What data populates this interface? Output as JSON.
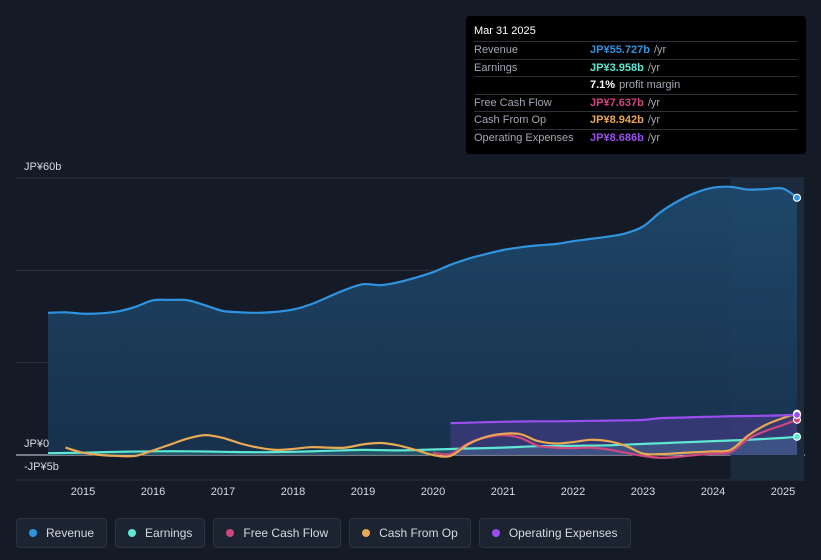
{
  "chart_data": {
    "type": "line",
    "y_top_label": "JP¥60b",
    "y_zero_label": "JP¥0",
    "y_bottom_label": "-JP¥5b",
    "ylim": [
      -5,
      60
    ],
    "xlim": [
      2014.5,
      2025.3
    ],
    "x_ticks": [
      "2015",
      "2016",
      "2017",
      "2018",
      "2019",
      "2020",
      "2021",
      "2022",
      "2023",
      "2024",
      "2025"
    ],
    "highlight_start": 2024.25,
    "series": [
      {
        "name": "Revenue",
        "color": "#2f94e0",
        "fill": true,
        "x": [
          2014.5,
          2014.75,
          2015.0,
          2015.25,
          2015.5,
          2015.75,
          2016.0,
          2016.25,
          2016.5,
          2016.75,
          2017.0,
          2017.25,
          2017.5,
          2017.75,
          2018.0,
          2018.25,
          2018.5,
          2018.75,
          2019.0,
          2019.25,
          2019.5,
          2019.75,
          2020.0,
          2020.25,
          2020.5,
          2020.75,
          2021.0,
          2021.25,
          2021.5,
          2021.75,
          2022.0,
          2022.25,
          2022.5,
          2022.75,
          2023.0,
          2023.25,
          2023.5,
          2023.75,
          2024.0,
          2024.25,
          2024.5,
          2024.75,
          2025.0,
          2025.2
        ],
        "values": [
          30.8,
          30.9,
          30.6,
          30.7,
          31.1,
          32.1,
          33.5,
          33.6,
          33.5,
          32.4,
          31.2,
          30.9,
          30.8,
          31.0,
          31.5,
          32.6,
          34.2,
          35.8,
          37.0,
          36.8,
          37.4,
          38.4,
          39.6,
          41.2,
          42.5,
          43.5,
          44.4,
          45.0,
          45.4,
          45.7,
          46.3,
          46.8,
          47.3,
          48.0,
          49.5,
          52.6,
          55.0,
          56.8,
          57.9,
          58.1,
          57.5,
          57.6,
          57.7,
          55.727
        ]
      },
      {
        "name": "Earnings",
        "color": "#5ee8d4",
        "fill": true,
        "x": [
          2014.5,
          2015.0,
          2015.5,
          2016.0,
          2016.5,
          2017.0,
          2017.5,
          2018.0,
          2018.5,
          2019.0,
          2019.5,
          2020.0,
          2020.5,
          2021.0,
          2021.5,
          2022.0,
          2022.5,
          2023.0,
          2023.5,
          2024.0,
          2024.5,
          2025.0,
          2025.2
        ],
        "values": [
          0.4,
          0.5,
          0.7,
          0.8,
          0.8,
          0.7,
          0.6,
          0.7,
          0.9,
          1.1,
          1.0,
          1.2,
          1.4,
          1.6,
          1.9,
          2.0,
          2.1,
          2.4,
          2.7,
          3.0,
          3.3,
          3.7,
          3.958
        ]
      },
      {
        "name": "Free Cash Flow",
        "color": "#d0477e",
        "fill": false,
        "x": [
          2020.0,
          2020.25,
          2020.5,
          2020.75,
          2021.0,
          2021.25,
          2021.5,
          2021.75,
          2022.0,
          2022.25,
          2022.5,
          2022.75,
          2023.0,
          2023.25,
          2023.5,
          2023.75,
          2024.0,
          2024.25,
          2024.5,
          2024.75,
          2025.0,
          2025.2
        ],
        "values": [
          0.5,
          0.2,
          2.5,
          3.8,
          4.3,
          3.7,
          2.0,
          1.6,
          1.5,
          1.6,
          1.2,
          0.5,
          -0.2,
          -0.6,
          -0.4,
          0.0,
          0.3,
          0.6,
          3.5,
          5.2,
          6.5,
          7.637
        ]
      },
      {
        "name": "Cash From Op",
        "color": "#e9a853",
        "fill": false,
        "x": [
          2014.75,
          2015.0,
          2015.25,
          2015.5,
          2015.75,
          2016.0,
          2016.25,
          2016.5,
          2016.75,
          2017.0,
          2017.25,
          2017.5,
          2017.75,
          2018.0,
          2018.25,
          2018.5,
          2018.75,
          2019.0,
          2019.25,
          2019.5,
          2019.75,
          2020.0,
          2020.25,
          2020.5,
          2020.75,
          2021.0,
          2021.25,
          2021.5,
          2021.75,
          2022.0,
          2022.25,
          2022.5,
          2022.75,
          2023.0,
          2023.25,
          2023.5,
          2023.75,
          2024.0,
          2024.25,
          2024.5,
          2024.75,
          2025.0,
          2025.2
        ],
        "values": [
          1.6,
          0.5,
          0.0,
          -0.2,
          -0.2,
          1.0,
          2.3,
          3.6,
          4.3,
          3.7,
          2.5,
          1.6,
          1.1,
          1.3,
          1.7,
          1.6,
          1.6,
          2.3,
          2.6,
          2.1,
          1.1,
          0.0,
          -0.2,
          2.3,
          3.9,
          4.6,
          4.5,
          3.0,
          2.5,
          2.8,
          3.3,
          3.0,
          2.0,
          0.3,
          0.2,
          0.4,
          0.6,
          0.8,
          1.1,
          4.2,
          6.5,
          8.0,
          8.942
        ]
      },
      {
        "name": "Operating Expenses",
        "color": "#9b4ef0",
        "fill": true,
        "x": [
          2020.25,
          2020.5,
          2020.75,
          2021.0,
          2021.25,
          2021.5,
          2021.75,
          2022.0,
          2022.25,
          2022.5,
          2022.75,
          2023.0,
          2023.25,
          2023.5,
          2023.75,
          2024.0,
          2024.25,
          2024.5,
          2024.75,
          2025.0,
          2025.2
        ],
        "values": [
          6.9,
          7.0,
          7.1,
          7.2,
          7.25,
          7.3,
          7.3,
          7.35,
          7.4,
          7.45,
          7.5,
          7.6,
          8.0,
          8.1,
          8.2,
          8.3,
          8.4,
          8.45,
          8.5,
          8.6,
          8.686
        ]
      }
    ]
  },
  "tooltip": {
    "date": "Mar 31 2025",
    "rows": [
      {
        "label": "Revenue",
        "value": "JP¥55.727b",
        "unit": "/yr",
        "color": "#2f94e0"
      },
      {
        "label": "Earnings",
        "value": "JP¥3.958b",
        "unit": "/yr",
        "color": "#5ee8d4"
      },
      {
        "label": "",
        "value": "7.1%",
        "unit": "profit margin",
        "color": "#ffffff"
      },
      {
        "label": "Free Cash Flow",
        "value": "JP¥7.637b",
        "unit": "/yr",
        "color": "#d0477e"
      },
      {
        "label": "Cash From Op",
        "value": "JP¥8.942b",
        "unit": "/yr",
        "color": "#e9a853"
      },
      {
        "label": "Operating Expenses",
        "value": "JP¥8.686b",
        "unit": "/yr",
        "color": "#9b4ef0"
      }
    ]
  },
  "legend": [
    {
      "label": "Revenue",
      "color": "#2f94e0"
    },
    {
      "label": "Earnings",
      "color": "#5ee8d4"
    },
    {
      "label": "Free Cash Flow",
      "color": "#d0477e"
    },
    {
      "label": "Cash From Op",
      "color": "#e9a853"
    },
    {
      "label": "Operating Expenses",
      "color": "#9b4ef0"
    }
  ]
}
